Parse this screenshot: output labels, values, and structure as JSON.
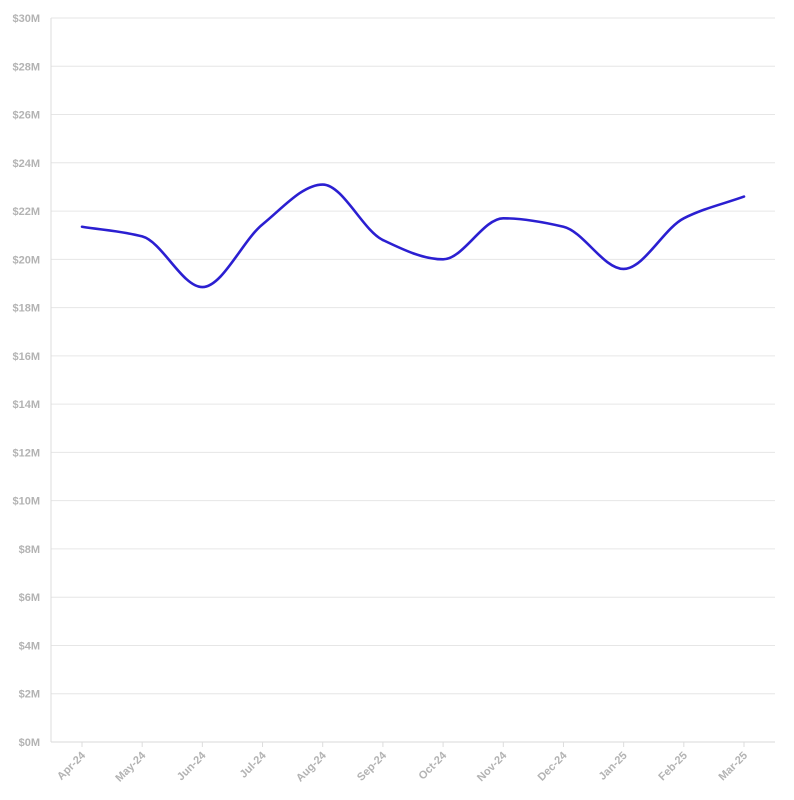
{
  "chart_data": {
    "type": "line",
    "title": "",
    "xlabel": "",
    "ylabel": "",
    "categories": [
      "Apr-24",
      "May-24",
      "Jun-24",
      "Jul-24",
      "Aug-24",
      "Sep-24",
      "Oct-24",
      "Nov-24",
      "Dec-24",
      "Jan-25",
      "Feb-25",
      "Mar-25"
    ],
    "series": [
      {
        "values": [
          21.35,
          20.95,
          18.85,
          21.45,
          23.1,
          20.8,
          20.0,
          21.7,
          21.35,
          19.6,
          21.7,
          22.6
        ],
        "color": "#2b1fd1"
      }
    ],
    "ylim": [
      0,
      30
    ],
    "y_ticks": [
      {
        "value": 0,
        "label": "$0M"
      },
      {
        "value": 2,
        "label": "$2M"
      },
      {
        "value": 4,
        "label": "$4M"
      },
      {
        "value": 6,
        "label": "$6M"
      },
      {
        "value": 8,
        "label": "$8M"
      },
      {
        "value": 10,
        "label": "$10M"
      },
      {
        "value": 12,
        "label": "$12M"
      },
      {
        "value": 14,
        "label": "$14M"
      },
      {
        "value": 16,
        "label": "$16M"
      },
      {
        "value": 18,
        "label": "$18M"
      },
      {
        "value": 20,
        "label": "$20M"
      },
      {
        "value": 22,
        "label": "$22M"
      },
      {
        "value": 24,
        "label": "$24M"
      },
      {
        "value": 26,
        "label": "$26M"
      },
      {
        "value": 28,
        "label": "$28M"
      },
      {
        "value": 30,
        "label": "$30M"
      }
    ],
    "grid": true,
    "legend": "none",
    "colors": {
      "line": "#2b1fd1",
      "grid": "#e6e6e6",
      "tick_text": "#b3b3b3",
      "axis": "#dddddd"
    }
  }
}
